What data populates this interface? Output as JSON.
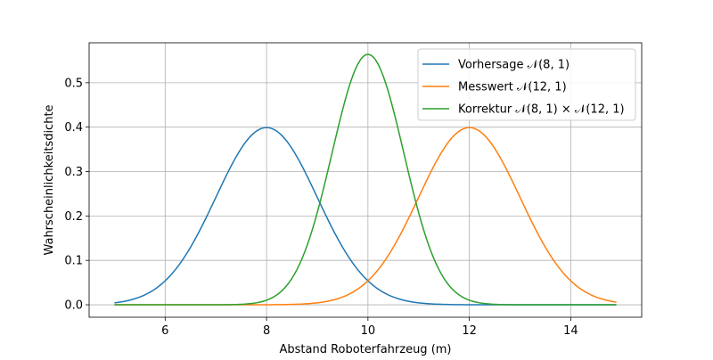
{
  "chart_data": {
    "type": "line",
    "title": "",
    "xlabel": "Abstand Roboterfahrzeug (m)",
    "ylabel": "Wahrscheinlichkeitsdichte",
    "xlim": [
      4.5,
      15.4
    ],
    "ylim": [
      -0.028,
      0.59
    ],
    "xticks": [
      6,
      8,
      10,
      12,
      14
    ],
    "yticks": [
      0.0,
      0.1,
      0.2,
      0.3,
      0.4,
      0.5
    ],
    "ytick_labels": [
      "0.0",
      "0.1",
      "0.2",
      "0.3",
      "0.4",
      "0.5"
    ],
    "grid": true,
    "legend_position": "top-right",
    "x_range": [
      5,
      14.9
    ],
    "series": [
      {
        "name": "Vorhersage 𝒩(8, 1)",
        "color": "#1f77b4",
        "mean": 8,
        "variance": 1,
        "peak": 0.399
      },
      {
        "name": "Messwert 𝒩(12, 1)",
        "color": "#ff7f0e",
        "mean": 12,
        "variance": 1,
        "peak": 0.399
      },
      {
        "name": "Korrektur 𝒩(8, 1) × 𝒩(12, 1)",
        "color": "#2ca02c",
        "mean": 10,
        "variance": 0.5,
        "peak": 0.564
      }
    ]
  }
}
